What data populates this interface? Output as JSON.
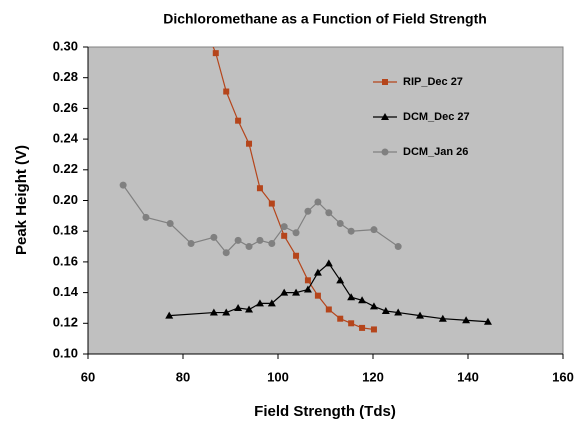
{
  "chart_data": {
    "type": "line",
    "title": "Dichloromethane as a Function of Field Strength",
    "x_label": "Field Strength (Tds)",
    "y_label": "Peak Height (V)",
    "xlim": [
      60,
      160
    ],
    "xticks": [
      60,
      80,
      100,
      120,
      140,
      160
    ],
    "ylim": [
      0.1,
      0.3
    ],
    "yticks": [
      {
        "value": 0.1,
        "label": "0.10"
      },
      {
        "value": 0.12,
        "label": "0.12"
      },
      {
        "value": 0.14,
        "label": "0.14"
      },
      {
        "value": 0.16,
        "label": "0.16"
      },
      {
        "value": 0.18,
        "label": "0.18"
      },
      {
        "value": 0.2,
        "label": "0.20"
      },
      {
        "value": 0.22,
        "label": "0.22"
      },
      {
        "value": 0.24,
        "label": "0.24"
      },
      {
        "value": 0.26,
        "label": "0.26"
      },
      {
        "value": 0.28,
        "label": "0.28"
      },
      {
        "value": 0.3,
        "label": "0.30"
      }
    ],
    "legend": "upper right",
    "background": "#c0c0c0",
    "series": [
      {
        "name": "RIP_Dec 27",
        "color": "#b5451b",
        "marker": "square",
        "x": [
          85.0,
          86.9,
          89.1,
          91.6,
          93.9,
          96.2,
          98.7,
          101.3,
          103.8,
          106.3,
          108.4,
          110.7,
          113.1,
          115.4,
          117.7,
          120.2
        ],
        "values": [
          0.31,
          0.296,
          0.271,
          0.252,
          0.237,
          0.208,
          0.198,
          0.177,
          0.164,
          0.148,
          0.138,
          0.129,
          0.123,
          0.12,
          0.117,
          0.116
        ]
      },
      {
        "name": "DCM_Dec 27",
        "color": "#000000",
        "marker": "triangle",
        "x": [
          77.1,
          86.5,
          89.1,
          91.6,
          93.9,
          96.2,
          98.7,
          101.3,
          103.8,
          106.3,
          108.4,
          110.7,
          113.1,
          115.4,
          117.7,
          120.2,
          122.7,
          125.3,
          129.9,
          134.7,
          139.6,
          144.2
        ],
        "values": [
          0.125,
          0.127,
          0.127,
          0.13,
          0.129,
          0.133,
          0.133,
          0.14,
          0.14,
          0.142,
          0.153,
          0.159,
          0.148,
          0.137,
          0.135,
          0.131,
          0.128,
          0.127,
          0.125,
          0.123,
          0.122,
          0.121
        ]
      },
      {
        "name": "DCM_Jan 26",
        "color": "#808080",
        "marker": "circle",
        "x": [
          67.4,
          72.2,
          77.3,
          81.7,
          86.5,
          89.1,
          91.6,
          93.9,
          96.2,
          98.7,
          101.3,
          103.8,
          106.3,
          108.4,
          110.7,
          113.1,
          115.4,
          120.2,
          125.3
        ],
        "values": [
          0.21,
          0.189,
          0.185,
          0.172,
          0.176,
          0.166,
          0.174,
          0.17,
          0.174,
          0.172,
          0.183,
          0.179,
          0.193,
          0.199,
          0.192,
          0.185,
          0.18,
          0.181,
          0.17
        ]
      }
    ]
  }
}
